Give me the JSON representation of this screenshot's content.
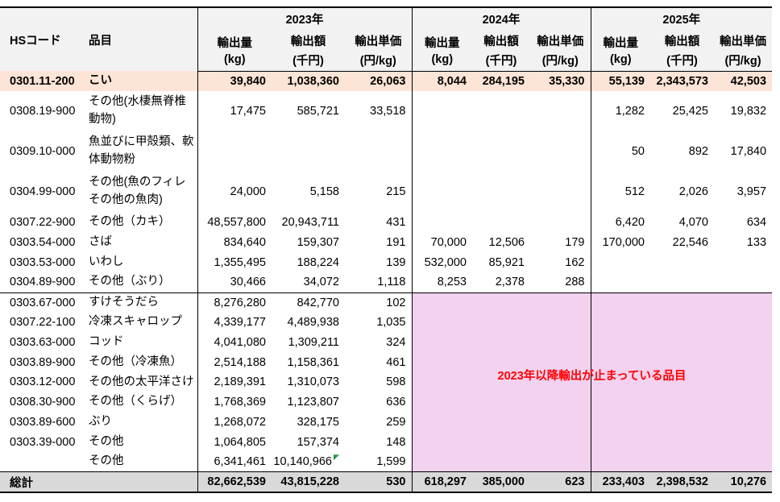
{
  "colors": {
    "header_bg": "#f2f2f2",
    "highlight_row_bg": "#fce4d6",
    "stopped_region_bg": "#f2d2ef",
    "total_row_bg": "#d9d9d9",
    "annotation_color": "#ff0000",
    "marker_color": "#1e9b40"
  },
  "annotation": "2023年以降輸出が止まっている品目",
  "table": {
    "col_headers": [
      "HSコード",
      "品目"
    ],
    "year_groups": [
      "2023年",
      "2024年",
      "2025年"
    ],
    "measures": [
      {
        "label": "輸出量",
        "unit": "(kg)"
      },
      {
        "label": "輸出額",
        "unit": "(千円)"
      },
      {
        "label": "輸出単価",
        "unit": "(円/kg)"
      }
    ],
    "pink_region": {
      "row_count": 9
    },
    "rows": [
      {
        "code": "0301.11-200",
        "item": "こい",
        "style": "peach",
        "values": [
          "39,840",
          "1,038,360",
          "26,063",
          "8,044",
          "284,195",
          "35,330",
          "55,139",
          "2,343,573",
          "42,503"
        ]
      },
      {
        "code": "0308.19-900",
        "item": "その他(水棲無脊椎動物)",
        "tall": true,
        "values": [
          "17,475",
          "585,721",
          "33,518",
          "",
          "",
          "",
          "1,282",
          "25,425",
          "19,832"
        ]
      },
      {
        "code": "0309.10-000",
        "item": "魚並びに甲殻類、軟体動物粉",
        "tall": true,
        "values": [
          "",
          "",
          "",
          "",
          "",
          "",
          "50",
          "892",
          "17,840"
        ]
      },
      {
        "code": "0304.99-000",
        "item": "その他(魚のフィレその他の魚肉)",
        "tall": true,
        "values": [
          "24,000",
          "5,158",
          "215",
          "",
          "",
          "",
          "512",
          "2,026",
          "3,957"
        ]
      },
      {
        "code": "0307.22-900",
        "item": "その他（カキ）",
        "values": [
          "48,557,800",
          "20,943,711",
          "431",
          "",
          "",
          "",
          "6,420",
          "4,070",
          "634"
        ]
      },
      {
        "code": "0303.54-000",
        "item": "さば",
        "values": [
          "834,640",
          "159,307",
          "191",
          "70,000",
          "12,506",
          "179",
          "170,000",
          "22,546",
          "133"
        ]
      },
      {
        "code": "0303.53-000",
        "item": "いわし",
        "values": [
          "1,355,495",
          "188,224",
          "139",
          "532,000",
          "85,921",
          "162",
          "",
          "",
          ""
        ]
      },
      {
        "code": "0304.89-900",
        "item": "その他（ぶり）",
        "values": [
          "30,466",
          "34,072",
          "1,118",
          "8,253",
          "2,378",
          "288",
          "",
          "",
          ""
        ]
      },
      {
        "code": "0303.67-000",
        "item": "すけそうだら",
        "pink": true,
        "pink_start": true,
        "values": [
          "8,276,280",
          "842,770",
          "102"
        ]
      },
      {
        "code": "0307.22-100",
        "item": "冷凍スキャロップ",
        "pink": true,
        "values": [
          "4,339,177",
          "4,489,938",
          "1,035"
        ]
      },
      {
        "code": "0303.63-000",
        "item": "コッド",
        "pink": true,
        "values": [
          "4,041,080",
          "1,309,211",
          "324"
        ]
      },
      {
        "code": "0303.89-900",
        "item": "その他（冷凍魚）",
        "pink": true,
        "values": [
          "2,514,188",
          "1,158,361",
          "461"
        ]
      },
      {
        "code": "0303.12-000",
        "item": "その他の太平洋さけ",
        "pink": true,
        "values": [
          "2,189,391",
          "1,310,073",
          "598"
        ]
      },
      {
        "code": "0308.30-900",
        "item": "その他（くらげ）",
        "pink": true,
        "values": [
          "1,768,369",
          "1,123,807",
          "636"
        ]
      },
      {
        "code": "0303.89-600",
        "item": "ぶり",
        "pink": true,
        "values": [
          "1,268,072",
          "328,175",
          "259"
        ]
      },
      {
        "code": "0303.39-000",
        "item": "その他",
        "pink": true,
        "values": [
          "1,064,805",
          "157,374",
          "148"
        ]
      },
      {
        "code": "",
        "item": "その他",
        "pink": true,
        "marker": 1,
        "values": [
          "6,341,461",
          "10,140,966",
          "1,599"
        ]
      },
      {
        "code": "総計",
        "item": "",
        "style": "total",
        "values": [
          "82,662,539",
          "43,815,228",
          "530",
          "618,297",
          "385,000",
          "623",
          "233,403",
          "2,398,532",
          "10,276"
        ]
      }
    ]
  }
}
